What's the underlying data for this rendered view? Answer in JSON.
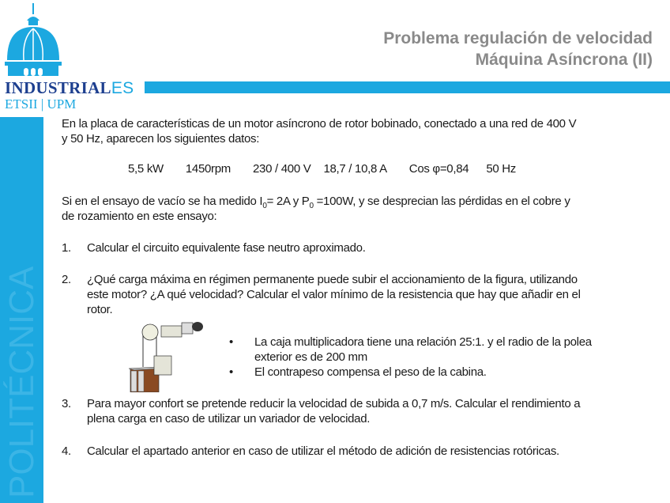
{
  "header": {
    "title_line1": "Problema regulación de velocidad",
    "title_line2": "Máquina Asíncrona (II)"
  },
  "logo": {
    "brand": "INDUSTRIAL",
    "brand_suffix": "ES",
    "subtitle": "ETSII | UPM",
    "side_text": "POLITÉCNICA"
  },
  "colors": {
    "brand_blue": "#1ca8e0",
    "brand_navy": "#1d3f8f",
    "title_gray": "#8a8a8a"
  },
  "intro": {
    "line1": "En la placa de características de un motor asíncrono de rotor bobinado, conectado a una red de 400 V",
    "line2": "y 50 Hz, aparecen los siguientes datos:"
  },
  "specs": [
    "5,5 kW",
    "1450rpm",
    "230 / 400 V",
    "18,7 / 10,8 A",
    "Cos φ=0,84",
    "50 Hz"
  ],
  "test": {
    "p1": "Si en el ensayo de vacío se ha medido I",
    "s1": "0",
    "p2": "= 2A y P",
    "s2": "0",
    "p3": " =100W, y se desprecian las pérdidas en el cobre y",
    "line2": "de rozamiento en este ensayo:"
  },
  "questions": [
    {
      "num": "1.",
      "lines": [
        "Calcular el circuito equivalente fase neutro aproximado."
      ]
    },
    {
      "num": "2.",
      "lines": [
        "¿Qué carga máxima en régimen permanente puede subir el accionamiento de la figura, utilizando",
        "este motor? ¿A qué velocidad? Calcular el valor mínimo de la resistencia que hay que añadir en el",
        "rotor."
      ]
    },
    {
      "num": "3.",
      "lines": [
        "Para mayor confort se pretende reducir la velocidad de subida a 0,7 m/s. Calcular el rendimiento a",
        "plena carga en caso de utilizar un variador de velocidad."
      ]
    },
    {
      "num": "4.",
      "lines": [
        "Calcular el apartado anterior en caso de utilizar el método de adición de resistencias rotóricas."
      ]
    }
  ],
  "bullets": [
    {
      "lines": [
        "La caja multiplicadora tiene una relación 25:1. y el radio de la polea",
        "exterior es de 200 mm"
      ]
    },
    {
      "lines": [
        "El contrapeso compensa el peso de la cabina."
      ]
    }
  ],
  "bullet_symbol": "•"
}
